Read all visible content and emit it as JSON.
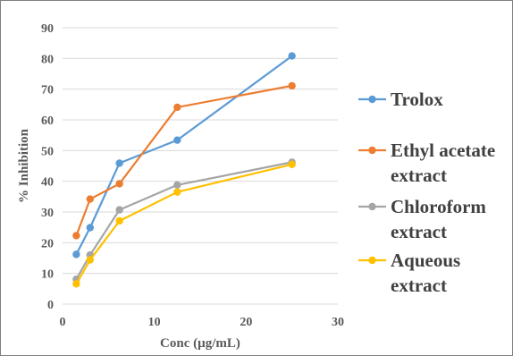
{
  "chart_data": {
    "type": "line",
    "title": "",
    "xlabel": "Conc (µg/mL)",
    "ylabel": "% Inhibition",
    "xlim": [
      0,
      30
    ],
    "ylim": [
      0,
      90
    ],
    "xticks": [
      0,
      10,
      20,
      30
    ],
    "yticks": [
      0,
      10,
      20,
      30,
      40,
      50,
      60,
      70,
      80,
      90
    ],
    "grid": "horizontal",
    "legend_position": "right",
    "series": [
      {
        "name": "Trolox",
        "legend_lines": [
          "Trolox"
        ],
        "color": "#5B9BD5",
        "x": [
          1.5,
          3,
          6.2,
          12.5,
          25
        ],
        "y": [
          16.2,
          24.9,
          45.9,
          53.4,
          80.8
        ]
      },
      {
        "name": "Ethyl acetate extract",
        "legend_lines": [
          "Ethyl acetate",
          "extract"
        ],
        "color": "#ED7D31",
        "x": [
          1.5,
          3,
          6.2,
          12.5,
          25
        ],
        "y": [
          22.3,
          34.2,
          39.2,
          64.1,
          71.1
        ]
      },
      {
        "name": "Chloroform extract",
        "legend_lines": [
          "Chloroform",
          "extract"
        ],
        "color": "#A5A5A5",
        "x": [
          1.5,
          3,
          6.2,
          12.5,
          25
        ],
        "y": [
          8.1,
          16.0,
          30.7,
          38.8,
          46.2
        ]
      },
      {
        "name": "Aqueous extract",
        "legend_lines": [
          "Aqueous",
          "extract"
        ],
        "color": "#FFC000",
        "x": [
          1.5,
          3,
          6.2,
          12.5,
          25
        ],
        "y": [
          6.6,
          14.4,
          27.1,
          36.5,
          45.5
        ]
      }
    ]
  }
}
